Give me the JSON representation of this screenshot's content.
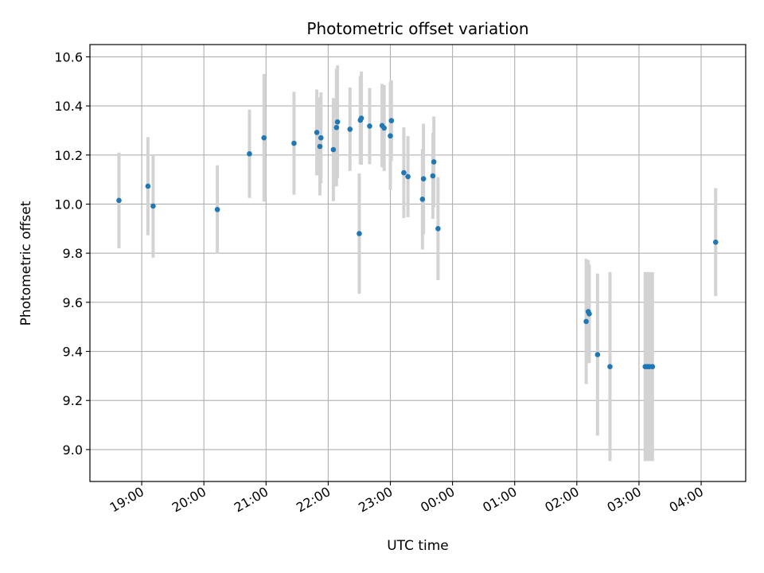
{
  "chart_data": {
    "type": "scatter",
    "title": "Photometric offset variation",
    "xlabel": "UTC time",
    "ylabel": "Photometric offset",
    "xlim": [
      "18:10",
      "04:43"
    ],
    "ylim": [
      8.87,
      10.65
    ],
    "grid": true,
    "x_tick_labels": [
      "19:00",
      "20:00",
      "21:00",
      "22:00",
      "23:00",
      "00:00",
      "01:00",
      "02:00",
      "03:00",
      "04:00"
    ],
    "x_ticks": [
      "19:00",
      "20:00",
      "21:00",
      "22:00",
      "23:00",
      "00:00",
      "01:00",
      "02:00",
      "03:00",
      "04:00"
    ],
    "y_ticks": [
      9.0,
      9.2,
      9.4,
      9.6,
      9.8,
      10.0,
      10.2,
      10.4,
      10.6
    ],
    "y_tick_labels": [
      "9.0",
      "9.2",
      "9.4",
      "9.6",
      "9.8",
      "10.0",
      "10.2",
      "10.4",
      "10.6"
    ],
    "colors": {
      "points": "#1f77b4",
      "errorbars": "#d3d3d3",
      "grid": "#b0b0b0"
    },
    "points": [
      {
        "x": "18:38",
        "y": 10.015,
        "err": 0.195
      },
      {
        "x": "19:06",
        "y": 10.073,
        "err": 0.2
      },
      {
        "x": "19:11",
        "y": 9.992,
        "err": 0.21
      },
      {
        "x": "20:13",
        "y": 9.978,
        "err": 0.18
      },
      {
        "x": "20:44",
        "y": 10.205,
        "err": 0.18
      },
      {
        "x": "20:58",
        "y": 10.27,
        "err": 0.26
      },
      {
        "x": "21:27",
        "y": 10.248,
        "err": 0.21
      },
      {
        "x": "21:49",
        "y": 10.292,
        "err": 0.175
      },
      {
        "x": "21:52",
        "y": 10.235,
        "err": 0.2
      },
      {
        "x": "21:53",
        "y": 10.27,
        "err": 0.185
      },
      {
        "x": "22:05",
        "y": 10.222,
        "err": 0.21
      },
      {
        "x": "22:08",
        "y": 10.312,
        "err": 0.24
      },
      {
        "x": "22:09",
        "y": 10.335,
        "err": 0.23
      },
      {
        "x": "22:21",
        "y": 10.305,
        "err": 0.17
      },
      {
        "x": "22:30",
        "y": 9.88,
        "err": 0.245
      },
      {
        "x": "22:31",
        "y": 10.342,
        "err": 0.18
      },
      {
        "x": "22:32",
        "y": 10.35,
        "err": 0.19
      },
      {
        "x": "22:40",
        "y": 10.318,
        "err": 0.155
      },
      {
        "x": "22:52",
        "y": 10.32,
        "err": 0.17
      },
      {
        "x": "22:54",
        "y": 10.31,
        "err": 0.175
      },
      {
        "x": "23:00",
        "y": 10.278,
        "err": 0.22
      },
      {
        "x": "23:01",
        "y": 10.34,
        "err": 0.165
      },
      {
        "x": "23:13",
        "y": 10.128,
        "err": 0.185
      },
      {
        "x": "23:17",
        "y": 10.112,
        "err": 0.165
      },
      {
        "x": "23:31",
        "y": 10.02,
        "err": 0.205
      },
      {
        "x": "23:32",
        "y": 10.103,
        "err": 0.225
      },
      {
        "x": "23:41",
        "y": 10.115,
        "err": 0.175
      },
      {
        "x": "23:42",
        "y": 10.172,
        "err": 0.185
      },
      {
        "x": "23:46",
        "y": 9.9,
        "err": 0.21
      },
      {
        "x": "02:09",
        "y": 9.522,
        "err": 0.255
      },
      {
        "x": "02:11",
        "y": 9.562,
        "err": 0.21
      },
      {
        "x": "02:12",
        "y": 9.553,
        "err": 0.2
      },
      {
        "x": "02:20",
        "y": 9.387,
        "err": 0.33
      },
      {
        "x": "02:32",
        "y": 9.338,
        "err": 0.385
      },
      {
        "x": "03:06",
        "y": 9.338,
        "err": 0.385
      },
      {
        "x": "03:08",
        "y": 9.338,
        "err": 0.385
      },
      {
        "x": "03:10",
        "y": 9.338,
        "err": 0.385
      },
      {
        "x": "03:13",
        "y": 9.338,
        "err": 0.385
      },
      {
        "x": "04:14",
        "y": 9.845,
        "err": 0.22
      }
    ]
  }
}
